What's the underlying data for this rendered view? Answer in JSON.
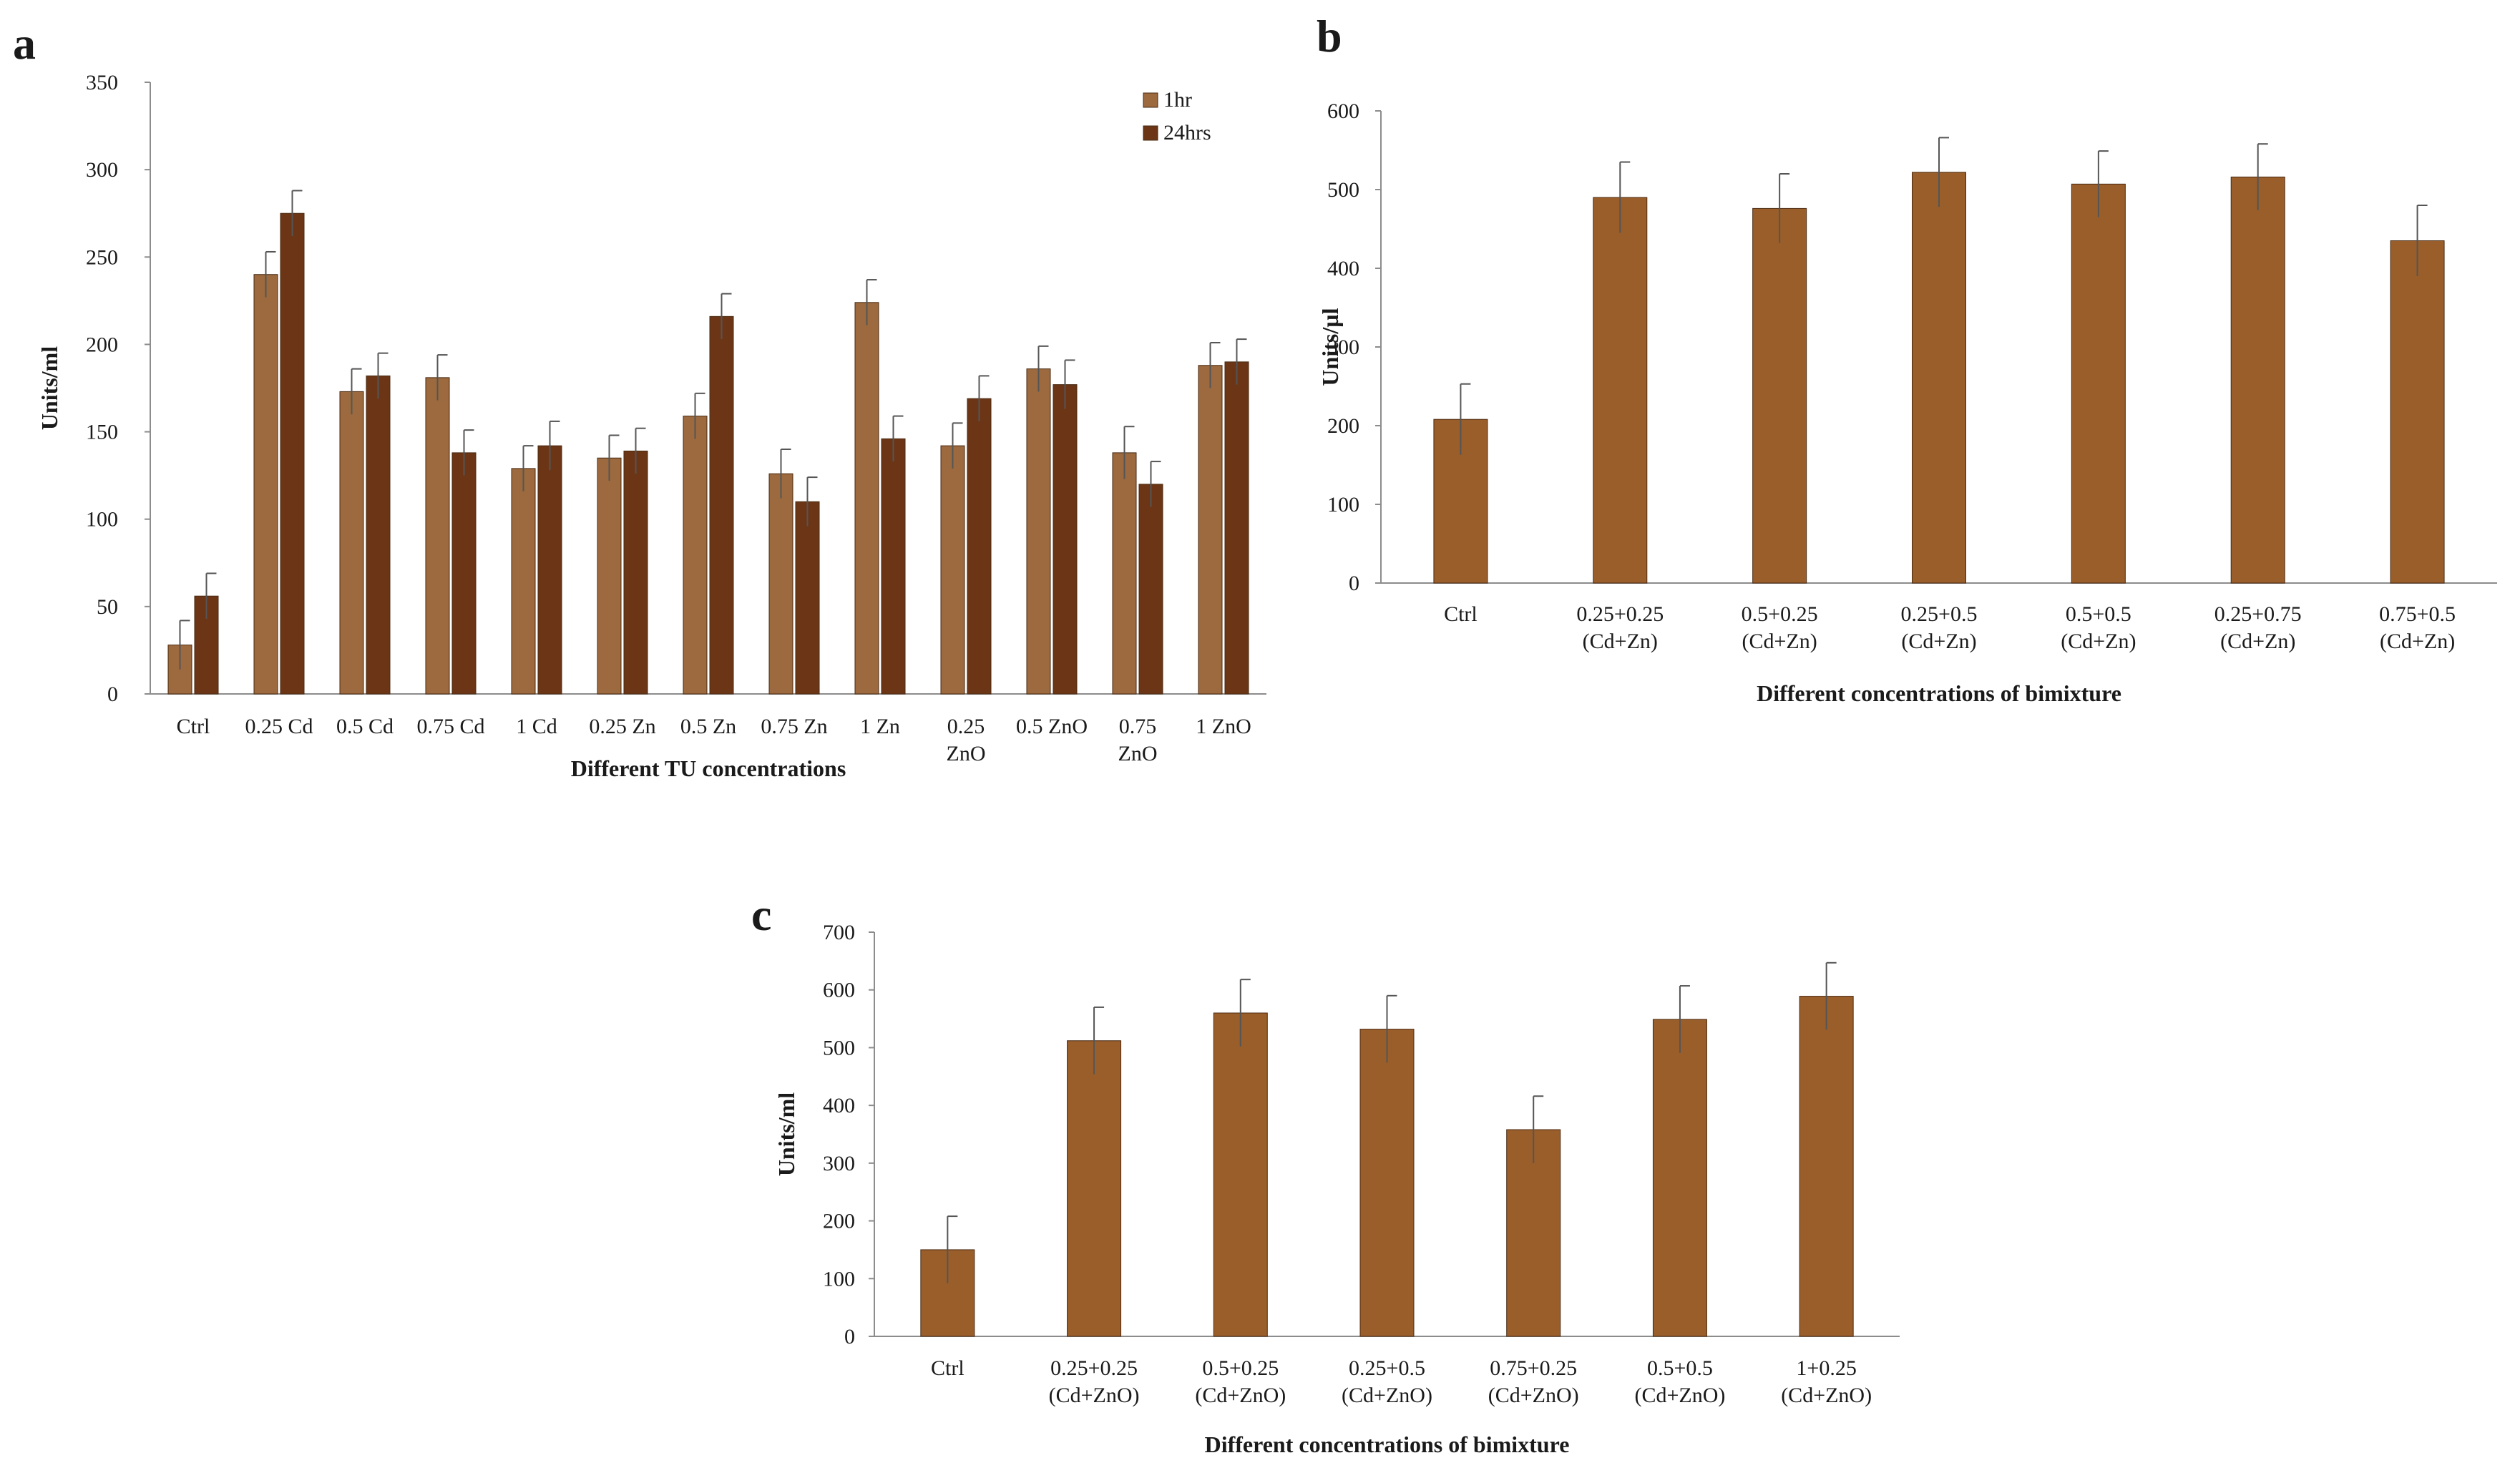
{
  "chart_data": [
    {
      "panel": "a",
      "type": "bar",
      "title": "",
      "xlabel": "Different TU concentrations",
      "ylabel": "Units/ml",
      "ylim": [
        0,
        350
      ],
      "yticks": [
        0,
        50,
        100,
        150,
        200,
        250,
        300,
        350
      ],
      "categories": [
        [
          "Ctrl"
        ],
        [
          "0.25 Cd"
        ],
        [
          "0.5 Cd"
        ],
        [
          "0.75 Cd"
        ],
        [
          "1 Cd"
        ],
        [
          "0.25 Zn"
        ],
        [
          "0.5 Zn"
        ],
        [
          "0.75 Zn"
        ],
        [
          "1 Zn"
        ],
        [
          "0.25",
          "ZnO"
        ],
        [
          "0.5 ZnO"
        ],
        [
          "0.75",
          "ZnO"
        ],
        [
          "1 ZnO"
        ]
      ],
      "legend_position": "top-right",
      "series": [
        {
          "name": "1hr",
          "color": "#9c6a3e",
          "values": [
            28,
            240,
            173,
            181,
            129,
            135,
            159,
            126,
            224,
            142,
            186,
            138,
            188
          ],
          "errors": [
            14,
            13,
            13,
            13,
            13,
            13,
            13,
            14,
            13,
            13,
            13,
            15,
            13
          ]
        },
        {
          "name": "24hrs",
          "color": "#6b3516",
          "values": [
            56,
            275,
            182,
            138,
            142,
            139,
            216,
            110,
            146,
            169,
            177,
            120,
            190
          ],
          "errors": [
            13,
            13,
            13,
            13,
            14,
            13,
            13,
            14,
            13,
            13,
            14,
            13,
            13
          ]
        }
      ]
    },
    {
      "panel": "b",
      "type": "bar",
      "title": "",
      "xlabel": "Different concentrations of bimixture",
      "ylabel": "Units/µl",
      "ylim": [
        0,
        600
      ],
      "yticks": [
        0,
        100,
        200,
        300,
        400,
        500,
        600
      ],
      "categories": [
        [
          "Ctrl"
        ],
        [
          "0.25+0.25",
          "(Cd+Zn)"
        ],
        [
          "0.5+0.25",
          "(Cd+Zn)"
        ],
        [
          "0.25+0.5",
          "(Cd+Zn)"
        ],
        [
          "0.5+0.5",
          "(Cd+Zn)"
        ],
        [
          "0.25+0.75",
          "(Cd+Zn)"
        ],
        [
          "0.75+0.5",
          "(Cd+Zn)"
        ]
      ],
      "series": [
        {
          "name": "Units/µl",
          "color": "#9a5e2a",
          "values": [
            208,
            490,
            476,
            522,
            507,
            516,
            435
          ],
          "errors": [
            45,
            45,
            44,
            44,
            42,
            42,
            45
          ]
        }
      ]
    },
    {
      "panel": "c",
      "type": "bar",
      "title": "",
      "xlabel": "Different concentrations of bimixture",
      "ylabel": "Units/ml",
      "ylim": [
        0,
        700
      ],
      "yticks": [
        0,
        100,
        200,
        300,
        400,
        500,
        600,
        700
      ],
      "categories": [
        [
          "Ctrl"
        ],
        [
          "0.25+0.25",
          "(Cd+ZnO)"
        ],
        [
          "0.5+0.25",
          "(Cd+ZnO)"
        ],
        [
          "0.25+0.5",
          "(Cd+ZnO)"
        ],
        [
          "0.75+0.25",
          "(Cd+ZnO)"
        ],
        [
          "0.5+0.5",
          "(Cd+ZnO)"
        ],
        [
          "1+0.25",
          "(Cd+ZnO)"
        ]
      ],
      "series": [
        {
          "name": "Units/ml",
          "color": "#9a5e2a",
          "values": [
            150,
            512,
            560,
            532,
            358,
            549,
            589
          ],
          "errors": [
            58,
            58,
            58,
            58,
            58,
            58,
            58
          ]
        }
      ]
    }
  ]
}
